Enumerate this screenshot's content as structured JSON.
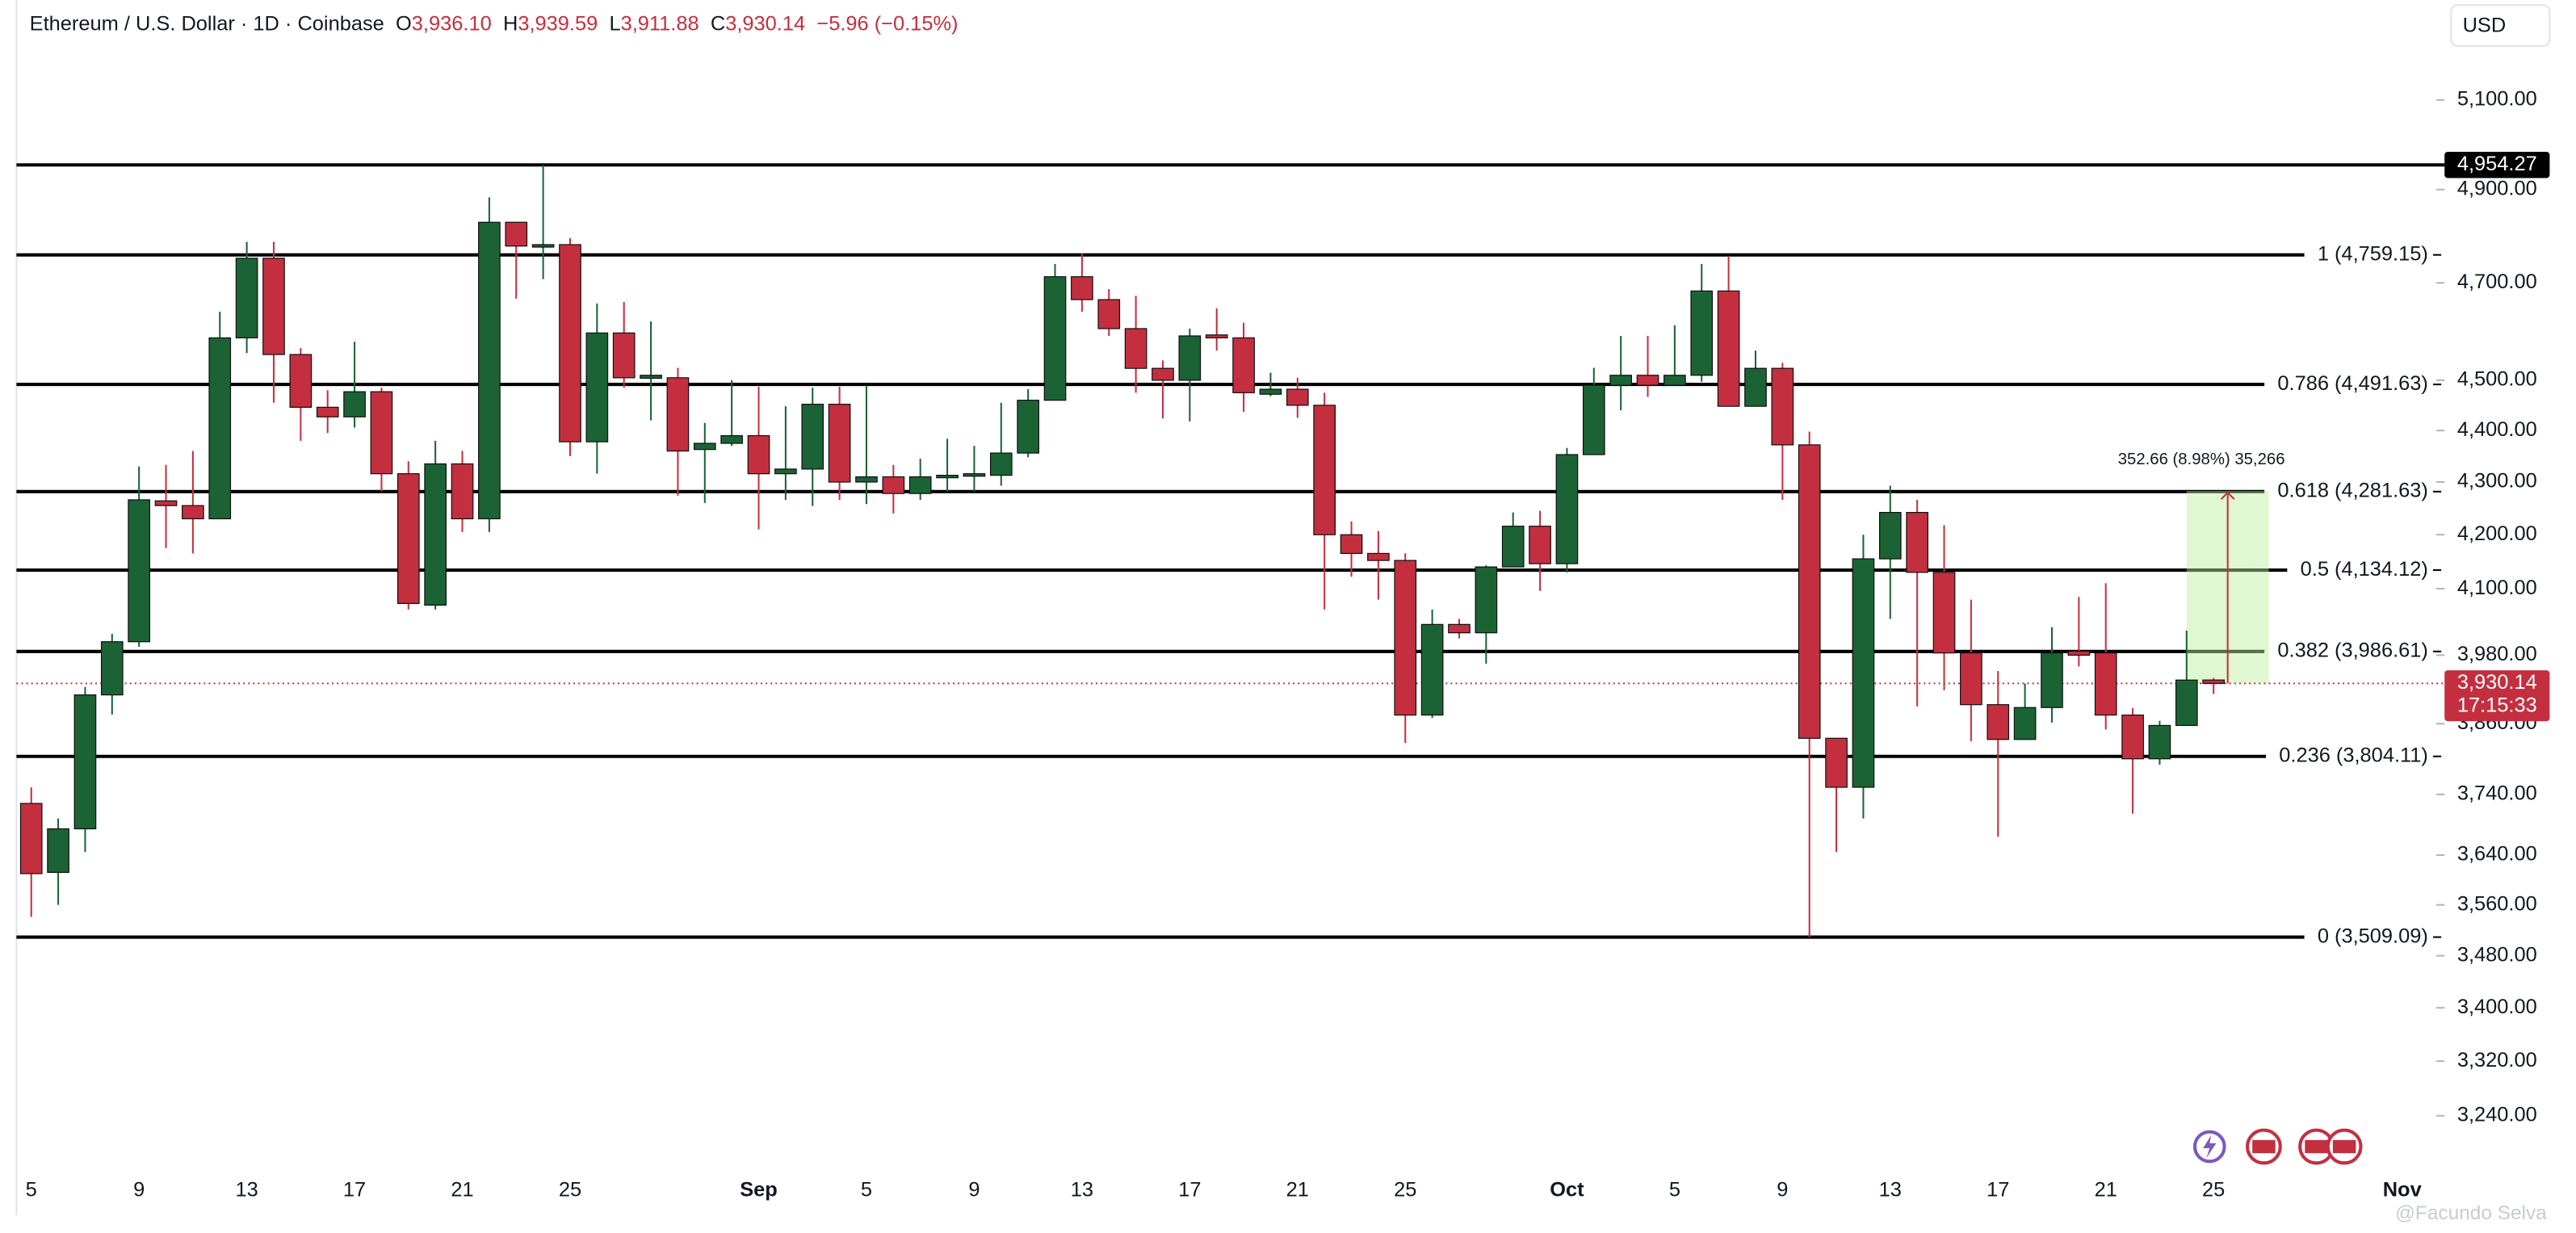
{
  "header": {
    "symbol": "Ethereum / U.S. Dollar · 1D · Coinbase",
    "ohlc": [
      {
        "key": "O",
        "value": "3,936.10"
      },
      {
        "key": "H",
        "value": "3,939.59"
      },
      {
        "key": "L",
        "value": "3,911.88"
      },
      {
        "key": "C",
        "value": "3,930.14"
      }
    ],
    "change": "−5.96 (−0.15%)",
    "currency": "USD",
    "watermark": "@Facundo Selva"
  },
  "chart_data": {
    "type": "candlestick",
    "log_scale": true,
    "up_color": "#1b6334",
    "down_color": "#c42f3f",
    "categories": [
      "5",
      null,
      null,
      null,
      "9",
      null,
      null,
      null,
      "13",
      null,
      null,
      null,
      "17",
      null,
      null,
      null,
      "21",
      null,
      null,
      null,
      "25",
      null,
      null,
      null,
      null,
      null,
      null,
      "Sep",
      null,
      null,
      null,
      "5",
      null,
      null,
      null,
      "9",
      null,
      null,
      null,
      "13",
      null,
      null,
      null,
      "17",
      null,
      null,
      null,
      "21",
      null,
      null,
      null,
      "25",
      null,
      null,
      null,
      null,
      null,
      "Oct",
      null,
      null,
      null,
      "5",
      null,
      null,
      null,
      "9",
      null,
      null,
      null,
      "13",
      null,
      null,
      null,
      "17",
      null,
      null,
      null,
      "21",
      null,
      null,
      null,
      "25",
      null,
      null,
      null,
      null,
      null,
      null,
      "Nov"
    ],
    "open": [
      3725,
      3612,
      3683,
      3910,
      4004,
      4264,
      4255,
      4230,
      4586,
      4752,
      4552,
      4446,
      4427,
      4477,
      4316,
      4070,
      4335,
      4230,
      4829,
      4778,
      4781,
      4378,
      4596,
      4504,
      4505,
      4363,
      4375,
      4390,
      4316,
      4325,
      4452,
      4300,
      4310,
      4278,
      4310,
      4313,
      4313,
      4356,
      4460,
      4713,
      4665,
      4605,
      4524,
      4500,
      4592,
      4586,
      4472,
      4482,
      4450,
      4200,
      4165,
      4152,
      3875,
      4035,
      4020,
      4140,
      4216,
      4146,
      4353,
      4490,
      4510,
      4490,
      4510,
      4683,
      4448,
      4524,
      4372,
      3835,
      3752,
      4155,
      4242,
      4130,
      3984,
      3893,
      3833,
      3888,
      3987,
      3984,
      3875,
      3800,
      3857,
      3936.1,
      null,
      null,
      null,
      null,
      null,
      null,
      null
    ],
    "high": [
      3752,
      3700,
      3924,
      4018,
      4330,
      4333,
      4360,
      4640,
      4787,
      4787,
      4565,
      4480,
      4578,
      4485,
      4340,
      4380,
      4360,
      4883,
      4829,
      4954,
      4795,
      4657,
      4660,
      4620,
      4525,
      4415,
      4500,
      4487,
      4448,
      4485,
      4487,
      4488,
      4333,
      4345,
      4384,
      4370,
      4455,
      4482,
      4740,
      4762,
      4687,
      4673,
      4540,
      4605,
      4647,
      4617,
      4515,
      4505,
      4475,
      4225,
      4207,
      4165,
      4062,
      4045,
      4143,
      4242,
      4245,
      4366,
      4525,
      4590,
      4590,
      4612,
      4740,
      4757,
      4560,
      4535,
      4398,
      3835,
      4200,
      4293,
      4266,
      4218,
      4080,
      3952,
      3930,
      4030,
      4085,
      4110,
      3887,
      3865,
      4024,
      3939.59,
      null,
      null,
      null,
      null,
      null,
      null,
      null
    ],
    "low": [
      3541,
      3560,
      3645,
      3876,
      3995,
      4175,
      4165,
      4230,
      4555,
      4455,
      4380,
      4395,
      4406,
      4282,
      4062,
      4062,
      4205,
      4205,
      4667,
      4708,
      4350,
      4316,
      4485,
      4420,
      4274,
      4260,
      4370,
      4210,
      4266,
      4254,
      4266,
      4258,
      4240,
      4266,
      4282,
      4282,
      4293,
      4348,
      4460,
      4640,
      4590,
      4475,
      4424,
      4418,
      4560,
      4437,
      4468,
      4425,
      4062,
      4122,
      4080,
      3827,
      3870,
      4010,
      3965,
      4140,
      4096,
      4130,
      4353,
      4440,
      4467,
      4490,
      4497,
      4448,
      4448,
      4266,
      3509,
      3645,
      3700,
      4045,
      3890,
      3918,
      3830,
      3670,
      3833,
      3862,
      3960,
      3850,
      3708,
      3790,
      3857,
      3911.88,
      null,
      null,
      null,
      null,
      null,
      null,
      null
    ],
    "close": [
      3610,
      3683,
      3910,
      4004,
      4266,
      4255,
      4230,
      4586,
      4752,
      4552,
      4446,
      4427,
      4477,
      4316,
      4073,
      4335,
      4230,
      4829,
      4778,
      4781,
      4378,
      4596,
      4505,
      4510,
      4360,
      4375,
      4390,
      4316,
      4325,
      4452,
      4300,
      4310,
      4278,
      4310,
      4313,
      4316,
      4356,
      4460,
      4713,
      4665,
      4605,
      4524,
      4500,
      4590,
      4586,
      4475,
      4482,
      4450,
      4200,
      4165,
      4152,
      3875,
      4035,
      4020,
      4140,
      4216,
      4146,
      4353,
      4490,
      4510,
      4490,
      4510,
      4683,
      4448,
      4524,
      4372,
      3835,
      3752,
      4155,
      4242,
      4130,
      3984,
      3893,
      3833,
      3888,
      3984,
      3980,
      3875,
      3800,
      3857,
      3936,
      3930.14,
      null,
      null,
      null,
      null,
      null,
      null,
      null
    ],
    "ylim": [
      3163,
      5333
    ],
    "yticks": [
      {
        "value": 5100,
        "label": "5,100.00"
      },
      {
        "value": 4900,
        "label": "4,900.00"
      },
      {
        "value": 4700,
        "label": "4,700.00"
      },
      {
        "value": 4500,
        "label": "4,500.00"
      },
      {
        "value": 4400,
        "label": "4,400.00"
      },
      {
        "value": 4300,
        "label": "4,300.00"
      },
      {
        "value": 4200,
        "label": "4,200.00"
      },
      {
        "value": 4100,
        "label": "4,100.00"
      },
      {
        "value": 3980,
        "label": "3,980.00"
      },
      {
        "value": 3860,
        "label": "3,860.00"
      },
      {
        "value": 3740,
        "label": "3,740.00"
      },
      {
        "value": 3640,
        "label": "3,640.00"
      },
      {
        "value": 3560,
        "label": "3,560.00"
      },
      {
        "value": 3480,
        "label": "3,480.00"
      },
      {
        "value": 3400,
        "label": "3,400.00"
      },
      {
        "value": 3320,
        "label": "3,320.00"
      },
      {
        "value": 3240,
        "label": "3,240.00"
      }
    ],
    "levels": [
      {
        "value": 4759.15,
        "label": "1 (4,759.15)"
      },
      {
        "value": 4491.63,
        "label": "0.786 (4,491.63)"
      },
      {
        "value": 4281.63,
        "label": "0.618 (4,281.63)"
      },
      {
        "value": 4134.12,
        "label": "0.5 (4,134.12)"
      },
      {
        "value": 3986.61,
        "label": "0.382 (3,986.61)"
      },
      {
        "value": 3804.11,
        "label": "0.236 (3,804.11)"
      },
      {
        "value": 3509.09,
        "label": "0 (3,509.09)"
      }
    ],
    "price_line": {
      "value": 4954.27,
      "label": "4,954.27"
    },
    "last_price": {
      "value": 3930.14,
      "label": "3,930.14",
      "countdown": "17:15:33"
    },
    "measure": {
      "from": 3930.14,
      "to": 4282.8,
      "label": "352.66 (8.98%) 35,266"
    }
  }
}
